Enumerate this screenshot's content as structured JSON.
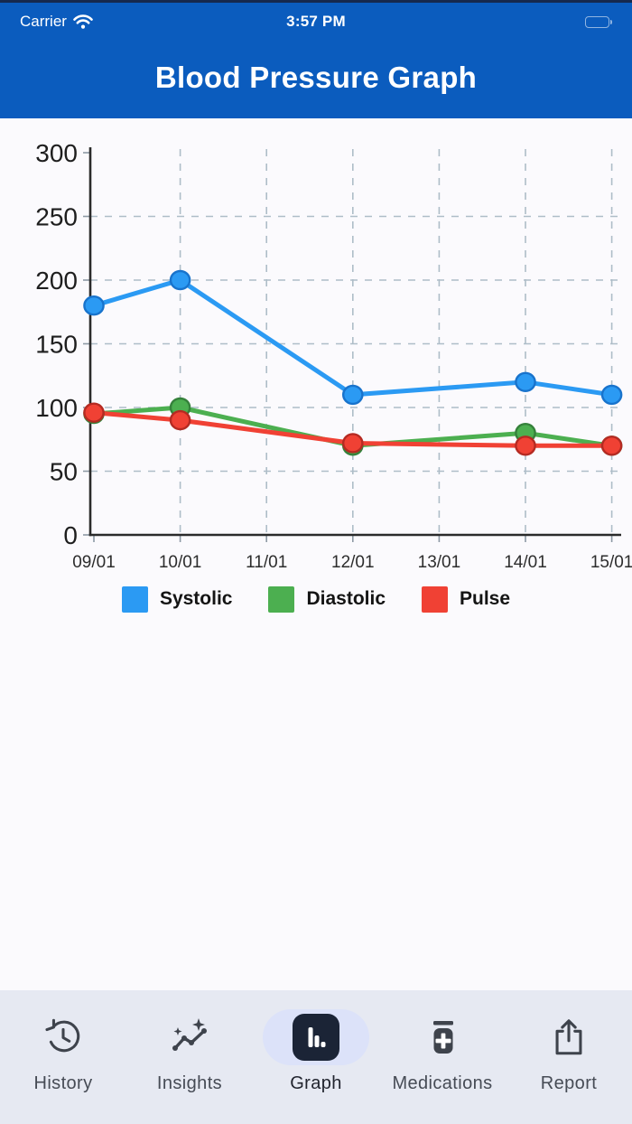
{
  "statusbar": {
    "carrier": "Carrier",
    "time": "3:57 PM"
  },
  "header": {
    "title": "Blood Pressure Graph"
  },
  "chart_data": {
    "type": "line",
    "title": "Blood Pressure Graph",
    "categories": [
      "09/01",
      "10/01",
      "11/01",
      "12/01",
      "13/01",
      "14/01",
      "15/01"
    ],
    "series": [
      {
        "name": "Systolic",
        "color": "#2B9AF3",
        "point_stroke": "#1873CC",
        "values": [
          180,
          200,
          null,
          110,
          null,
          120,
          110
        ]
      },
      {
        "name": "Diastolic",
        "color": "#4CAF50",
        "point_stroke": "#35813B",
        "values": [
          95,
          100,
          null,
          70,
          null,
          80,
          70
        ]
      },
      {
        "name": "Pulse",
        "color": "#F04134",
        "point_stroke": "#B52A22",
        "values": [
          96,
          90,
          null,
          72,
          null,
          70,
          70
        ]
      }
    ],
    "xlabel": "",
    "ylabel": "",
    "ylim": [
      0,
      300
    ],
    "ytick_step": 50,
    "grid": "dashed",
    "grid_color": "#AEBDC8",
    "axis_color": "#2B2B2B",
    "legend_position": "bottom"
  },
  "tabbar": {
    "items": [
      {
        "label": "History",
        "icon": "history-icon",
        "active": false
      },
      {
        "label": "Insights",
        "icon": "insights-icon",
        "active": false
      },
      {
        "label": "Graph",
        "icon": "bar-chart-icon",
        "active": true
      },
      {
        "label": "Medications",
        "icon": "medication-icon",
        "active": false
      },
      {
        "label": "Report",
        "icon": "share-icon",
        "active": false
      }
    ]
  },
  "colors": {
    "header_blue": "#0B5CBE",
    "tabbar_bg": "#E6E9F2",
    "active_pill": "#DCE2F9",
    "active_tile": "#1B2436"
  }
}
